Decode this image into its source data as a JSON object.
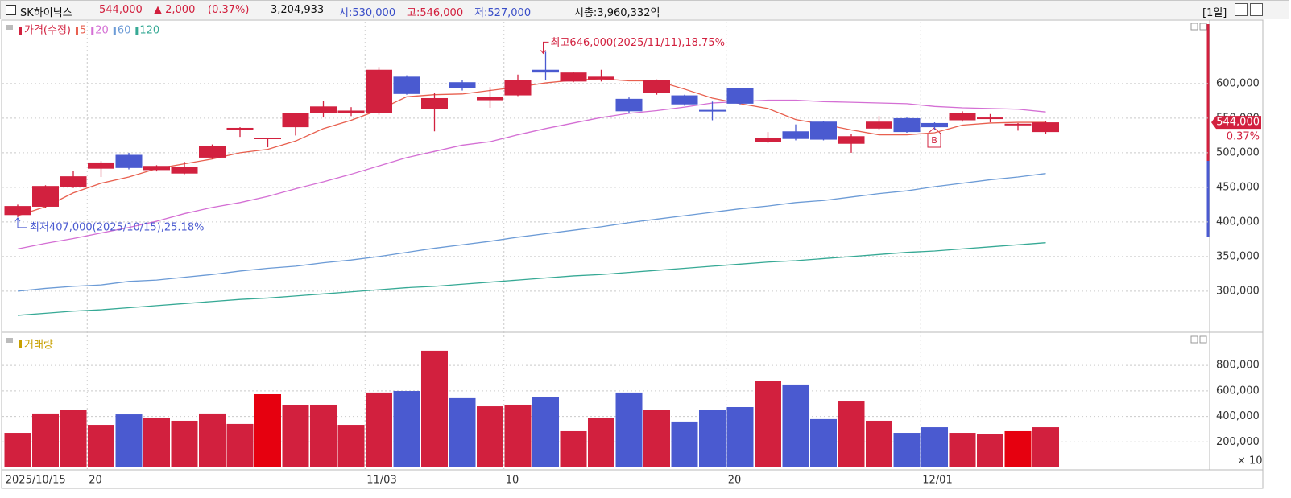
{
  "header": {
    "name": "SK하이닉스",
    "price": "544,000",
    "change": "▲ 2,000",
    "change_pct": "(0.37%)",
    "volume": "3,204,933",
    "open": "시:530,000",
    "high": "고:546,000",
    "low": "저:527,000",
    "market_cap": "시총:3,960,332억",
    "period": "[1일]"
  },
  "chart_data": [
    {
      "type": "candlestick",
      "legend_name": "가격(수정)",
      "categories": [
        "2025/10/15",
        null,
        null,
        "20",
        null,
        null,
        null,
        null,
        null,
        null,
        null,
        null,
        null,
        "11/03",
        null,
        null,
        null,
        null,
        "10",
        null,
        null,
        null,
        null,
        null,
        null,
        null,
        "20",
        null,
        null,
        null,
        null,
        null,
        null,
        "12/01",
        null,
        null,
        null,
        null
      ],
      "open": [
        410000,
        422000,
        451000,
        477000,
        497000,
        475000,
        470000,
        493000,
        533000,
        521000,
        537000,
        558000,
        557000,
        557000,
        610000,
        563000,
        602000,
        576000,
        583000,
        620000,
        603000,
        606000,
        578000,
        586000,
        583000,
        562000,
        593000,
        516000,
        531000,
        545000,
        513000,
        535000,
        550000,
        543000,
        547000,
        549000,
        541000,
        530000
      ],
      "high": [
        425000,
        453000,
        474000,
        488000,
        500000,
        482000,
        487000,
        512000,
        537000,
        522000,
        558000,
        575000,
        566000,
        624000,
        612000,
        586000,
        605000,
        595000,
        613000,
        646000,
        617000,
        620000,
        580000,
        606000,
        584000,
        574000,
        594000,
        530000,
        541000,
        546000,
        527000,
        553000,
        551000,
        544000,
        560000,
        556000,
        543000,
        546000
      ],
      "low": [
        407000,
        420000,
        449000,
        465000,
        476000,
        473000,
        469000,
        491000,
        523000,
        508000,
        525000,
        551000,
        553000,
        555000,
        584000,
        531000,
        590000,
        565000,
        582000,
        605000,
        602000,
        603000,
        558000,
        584000,
        568000,
        547000,
        570000,
        514000,
        518000,
        518000,
        500000,
        533000,
        529000,
        533000,
        545000,
        544000,
        532000,
        527000
      ],
      "close": [
        423000,
        452000,
        466000,
        486000,
        478000,
        481000,
        479000,
        510000,
        536000,
        522000,
        557000,
        567000,
        561000,
        620000,
        585000,
        579000,
        593000,
        581000,
        605000,
        616000,
        616000,
        610000,
        560000,
        605000,
        570000,
        560000,
        571000,
        522000,
        520000,
        519000,
        524000,
        545000,
        530000,
        537000,
        557000,
        551000,
        542000,
        544000
      ],
      "up_color": "#d2213f",
      "down_color": "#4a5ad0",
      "lines": [
        {
          "name": "5",
          "color": "#e8604f",
          "values": [
            409000,
            422000,
            442000,
            456000,
            465000,
            477000,
            484000,
            491000,
            500000,
            505000,
            517000,
            535000,
            547000,
            562000,
            581000,
            584000,
            585000,
            590000,
            595000,
            601000,
            605000,
            607000,
            604000,
            604000,
            592000,
            579000,
            571000,
            564000,
            548000,
            541000,
            533000,
            526000,
            526000,
            529000,
            540000,
            543000,
            544000,
            544000
          ]
        },
        {
          "name": "20",
          "color": "#d46fd4",
          "values": [
            361000,
            369000,
            376000,
            384000,
            392000,
            401000,
            412000,
            421000,
            428000,
            437000,
            448000,
            458000,
            469000,
            481000,
            493000,
            502000,
            511000,
            516000,
            526000,
            535000,
            543000,
            551000,
            557000,
            561000,
            566000,
            572000,
            574000,
            576000,
            576000,
            574000,
            573000,
            572000,
            571000,
            567000,
            565000,
            564000,
            563000,
            559000
          ]
        },
        {
          "name": "60",
          "color": "#6c9bd6",
          "values": [
            300000,
            304000,
            307000,
            309000,
            314000,
            316000,
            320000,
            324000,
            329000,
            333000,
            336000,
            341000,
            345000,
            350000,
            356000,
            362000,
            367000,
            372000,
            378000,
            383000,
            388000,
            393000,
            399000,
            404000,
            409000,
            414000,
            419000,
            423000,
            428000,
            431000,
            436000,
            441000,
            445000,
            451000,
            456000,
            461000,
            465000,
            470000
          ]
        },
        {
          "name": "120",
          "color": "#36a995",
          "values": [
            265000,
            268000,
            271000,
            273000,
            276000,
            279000,
            282000,
            285000,
            288000,
            290000,
            293000,
            296000,
            299000,
            302000,
            305000,
            307000,
            310000,
            313000,
            316000,
            319000,
            322000,
            324000,
            327000,
            330000,
            333000,
            336000,
            339000,
            342000,
            344000,
            347000,
            350000,
            353000,
            356000,
            358000,
            361000,
            364000,
            367000,
            370000
          ]
        }
      ],
      "high_annotation": "최고646,000(2025/11/11),18.75%",
      "low_annotation": "최저407,000(2025/10/15),25.18%",
      "last_label": "544,000",
      "last_pct": "0.37%",
      "marker": "B",
      "ylim": [
        244000,
        686000
      ],
      "yticks": [
        {
          "value": 300000,
          "label": "300,000"
        },
        {
          "value": 350000,
          "label": "350,000"
        },
        {
          "value": 400000,
          "label": "400,000"
        },
        {
          "value": 450000,
          "label": "450,000"
        },
        {
          "value": 500000,
          "label": "500,000"
        },
        {
          "value": 550000,
          "label": "550,000"
        },
        {
          "value": 600000,
          "label": "600,000"
        }
      ],
      "grid": true
    },
    {
      "type": "bar",
      "title": "거래량",
      "unit_label": "× 10",
      "values": [
        271000,
        423000,
        454000,
        334000,
        416000,
        385000,
        366000,
        423000,
        341000,
        574000,
        486000,
        492000,
        334000,
        587000,
        599000,
        915000,
        543000,
        479000,
        492000,
        555000,
        284000,
        385000,
        587000,
        448000,
        360000,
        454000,
        473000,
        675000,
        650000,
        379000,
        517000,
        366000,
        271000,
        315000,
        271000,
        259000,
        284000,
        315000
      ],
      "colors": [
        "#d2203e",
        "#d2203e",
        "#d2203e",
        "#d2203e",
        "#4a5ad0",
        "#d2203e",
        "#d2203e",
        "#d2203e",
        "#d2203e",
        "#e6000f",
        "#d2203e",
        "#d2203e",
        "#d2203e",
        "#d2203e",
        "#4a5ad0",
        "#d2203e",
        "#4a5ad0",
        "#d2203e",
        "#d2203e",
        "#4a5ad0",
        "#d2203e",
        "#d2203e",
        "#4a5ad0",
        "#d2203e",
        "#4a5ad0",
        "#4a5ad0",
        "#4a5ad0",
        "#d2203e",
        "#4a5ad0",
        "#4a5ad0",
        "#d2203e",
        "#d2203e",
        "#4a5ad0",
        "#4a5ad0",
        "#d2203e",
        "#d2203e",
        "#e6000f",
        "#d2203e"
      ],
      "ylim": [
        0,
        1028000
      ],
      "yticks": [
        {
          "value": 200000,
          "label": "200,000"
        },
        {
          "value": 400000,
          "label": "400,000"
        },
        {
          "value": 600000,
          "label": "600,000"
        },
        {
          "value": 800000,
          "label": "800,000"
        }
      ],
      "grid": true
    }
  ]
}
